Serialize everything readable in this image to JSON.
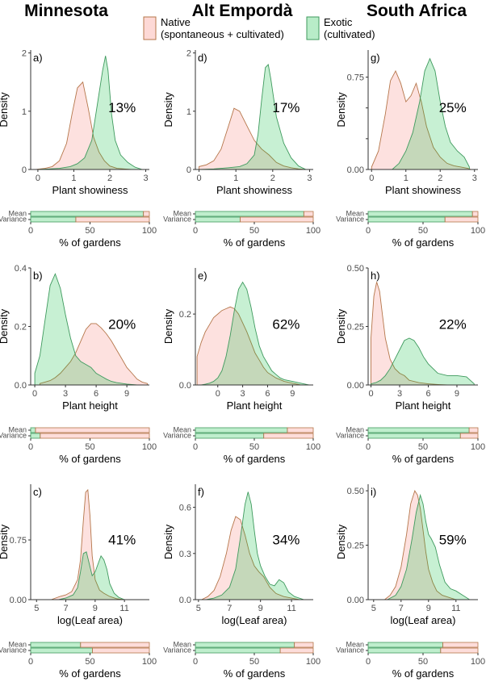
{
  "colors": {
    "native": "#f8766d",
    "exotic": "#00ba38",
    "native_line": "#b5764a",
    "exotic_line": "#3f9a5e",
    "axis": "#333333"
  },
  "legend": {
    "native": "Native\n(spontaneous + cultivated)",
    "exotic": "Exotic\n(cultivated)"
  },
  "columns": [
    "Minnesota",
    "Alt Empordà",
    "South Africa"
  ],
  "y_axis_label": "Density",
  "bar_axis_label": "% of gardens",
  "bar_rows": [
    "Mean",
    "Variance"
  ],
  "chart_data": [
    {
      "id": "a",
      "label": "a)",
      "type": "area",
      "xlabel": "Plant showiness",
      "ylabel": "Density",
      "xlim": [
        -0.2,
        3.1
      ],
      "ylim": [
        0,
        2.05
      ],
      "xticks": [
        0,
        1,
        2,
        3
      ],
      "yticks": [
        0,
        1,
        2
      ],
      "ytick_labels": [
        "0",
        "1",
        "2"
      ],
      "percent": "13%",
      "series": [
        {
          "key": "native",
          "x": [
            -0.05,
            0.2,
            0.4,
            0.6,
            0.8,
            0.95,
            1.1,
            1.25,
            1.4,
            1.55,
            1.7,
            1.85,
            2.0,
            2.2,
            2.4,
            2.6
          ],
          "y": [
            0,
            0.02,
            0.05,
            0.15,
            0.45,
            0.95,
            1.4,
            1.5,
            1.05,
            0.55,
            0.3,
            0.15,
            0.06,
            0.02,
            0.01,
            0
          ]
        },
        {
          "key": "exotic",
          "x": [
            0.0,
            0.3,
            0.6,
            0.9,
            1.1,
            1.3,
            1.5,
            1.65,
            1.8,
            1.88,
            1.95,
            2.05,
            2.15,
            2.3,
            2.5,
            2.7,
            2.9
          ],
          "y": [
            0,
            0.01,
            0.02,
            0.05,
            0.1,
            0.2,
            0.5,
            1.1,
            1.7,
            1.95,
            1.7,
            0.95,
            0.5,
            0.25,
            0.12,
            0.04,
            0
          ]
        }
      ],
      "bars": {
        "mean_native": 5,
        "variance_native": 62
      }
    },
    {
      "id": "d",
      "label": "d)",
      "type": "area",
      "xlabel": "Plant showiness",
      "ylabel": "Density",
      "xlim": [
        -0.1,
        3.1
      ],
      "ylim": [
        0,
        2.05
      ],
      "xticks": [
        0,
        1,
        2,
        3
      ],
      "yticks": [
        0,
        1,
        2
      ],
      "ytick_labels": [
        "0",
        "1",
        "2"
      ],
      "percent": "17%",
      "series": [
        {
          "key": "native",
          "x": [
            0.0,
            0.2,
            0.4,
            0.6,
            0.8,
            0.95,
            1.1,
            1.3,
            1.5,
            1.7,
            1.9,
            2.1,
            2.3,
            2.5,
            2.7,
            2.9
          ],
          "y": [
            0.05,
            0.08,
            0.15,
            0.35,
            0.75,
            1.05,
            1.0,
            0.75,
            0.5,
            0.35,
            0.25,
            0.12,
            0.06,
            0.03,
            0.01,
            0
          ]
        },
        {
          "key": "exotic",
          "x": [
            0.0,
            0.4,
            0.8,
            1.1,
            1.3,
            1.5,
            1.6,
            1.7,
            1.8,
            1.88,
            1.95,
            2.1,
            2.3,
            2.5,
            2.7,
            2.9
          ],
          "y": [
            0,
            0.01,
            0.03,
            0.05,
            0.1,
            0.25,
            0.6,
            1.2,
            1.75,
            1.8,
            1.55,
            0.9,
            0.45,
            0.2,
            0.06,
            0
          ]
        }
      ],
      "bars": {
        "mean_native": 8,
        "variance_native": 62
      }
    },
    {
      "id": "g",
      "label": "g)",
      "type": "area",
      "xlabel": "Plant showiness",
      "ylabel": "Density",
      "xlim": [
        -0.1,
        3.1
      ],
      "ylim": [
        0,
        0.97
      ],
      "xticks": [
        0,
        1,
        2,
        3
      ],
      "yticks": [
        0,
        0.25,
        0.5,
        0.75
      ],
      "ytick_labels": [
        "0.00",
        "",
        "",
        "0.75"
      ],
      "percent": "25%",
      "series": [
        {
          "key": "native",
          "x": [
            0.0,
            0.2,
            0.4,
            0.55,
            0.7,
            0.85,
            1.0,
            1.15,
            1.3,
            1.45,
            1.6,
            1.8,
            2.0,
            2.2,
            2.4,
            2.6,
            2.8,
            2.9
          ],
          "y": [
            0.02,
            0.15,
            0.45,
            0.72,
            0.8,
            0.7,
            0.55,
            0.6,
            0.7,
            0.55,
            0.35,
            0.18,
            0.1,
            0.05,
            0.03,
            0.02,
            0.01,
            0
          ]
        },
        {
          "key": "exotic",
          "x": [
            0.6,
            0.8,
            1.0,
            1.2,
            1.4,
            1.55,
            1.7,
            1.85,
            2.0,
            2.15,
            2.3,
            2.5,
            2.7,
            2.85
          ],
          "y": [
            0,
            0.05,
            0.15,
            0.3,
            0.55,
            0.8,
            0.9,
            0.8,
            0.55,
            0.35,
            0.22,
            0.15,
            0.1,
            0.02
          ]
        }
      ],
      "bars": {
        "mean_native": 5,
        "variance_native": 30
      }
    },
    {
      "id": "b",
      "label": "b)",
      "type": "area",
      "xlabel": "Plant height",
      "ylabel": "Density",
      "xlim": [
        -0.4,
        11.2
      ],
      "ylim": [
        0,
        0.4
      ],
      "xticks": [
        0,
        3,
        6,
        9
      ],
      "yticks": [
        0,
        0.2,
        0.4
      ],
      "ytick_labels": [
        "0.0",
        "0.2",
        "0.4"
      ],
      "percent": "20%",
      "series": [
        {
          "key": "native",
          "x": [
            0.5,
            1,
            1.5,
            2,
            2.5,
            3,
            3.5,
            4,
            4.5,
            5,
            5.5,
            6,
            6.5,
            7,
            7.5,
            8,
            8.5,
            9,
            9.5,
            10,
            10.5,
            11
          ],
          "y": [
            0.005,
            0.01,
            0.015,
            0.025,
            0.04,
            0.06,
            0.08,
            0.11,
            0.15,
            0.19,
            0.21,
            0.21,
            0.195,
            0.175,
            0.15,
            0.12,
            0.09,
            0.06,
            0.04,
            0.02,
            0.01,
            0.005
          ]
        },
        {
          "key": "exotic",
          "x": [
            0,
            0.5,
            1,
            1.5,
            2,
            2.5,
            3,
            3.5,
            4,
            4.5,
            5,
            5.5,
            6,
            6.5,
            7,
            7.5,
            8,
            9,
            10
          ],
          "y": [
            0.04,
            0.1,
            0.22,
            0.34,
            0.38,
            0.33,
            0.24,
            0.16,
            0.1,
            0.08,
            0.07,
            0.06,
            0.04,
            0.03,
            0.02,
            0.012,
            0.008,
            0.003,
            0
          ]
        }
      ],
      "bars": {
        "mean_native": 96,
        "variance_native": 92
      }
    },
    {
      "id": "e",
      "label": "e)",
      "type": "area",
      "xlabel": "Plant height",
      "ylabel": "Density",
      "xlim": [
        -2.7,
        11.5
      ],
      "ylim": [
        0,
        0.33
      ],
      "xticks": [
        0,
        3,
        6,
        9
      ],
      "yticks": [
        0,
        0.2
      ],
      "ytick_labels": [
        "0.0",
        "0.2"
      ],
      "percent": "62%",
      "series": [
        {
          "key": "native",
          "x": [
            -2.5,
            -2,
            -1.5,
            -1,
            -0.5,
            0,
            0.5,
            1,
            1.5,
            2,
            2.5,
            3,
            3.5,
            4,
            4.5,
            5,
            5.5,
            6,
            7,
            8,
            9,
            10
          ],
          "y": [
            0.08,
            0.12,
            0.15,
            0.17,
            0.19,
            0.2,
            0.21,
            0.215,
            0.22,
            0.215,
            0.2,
            0.175,
            0.15,
            0.12,
            0.09,
            0.07,
            0.05,
            0.035,
            0.02,
            0.01,
            0.005,
            0
          ]
        },
        {
          "key": "exotic",
          "x": [
            -2.0,
            -1.5,
            -1,
            -0.5,
            0,
            0.5,
            1,
            1.5,
            2,
            2.5,
            3,
            3.5,
            4,
            4.5,
            5,
            5.5,
            6,
            6.5,
            7,
            7.5,
            8,
            9,
            10,
            11
          ],
          "y": [
            0,
            0.002,
            0.005,
            0.01,
            0.02,
            0.04,
            0.08,
            0.14,
            0.21,
            0.27,
            0.29,
            0.27,
            0.22,
            0.16,
            0.11,
            0.08,
            0.06,
            0.04,
            0.03,
            0.02,
            0.015,
            0.01,
            0.005,
            0
          ]
        }
      ],
      "bars": {
        "mean_native": 22,
        "variance_native": 42
      }
    },
    {
      "id": "h",
      "label": "h)",
      "type": "area",
      "xlabel": "Plant height",
      "ylabel": "Density",
      "xlim": [
        -0.3,
        11.2
      ],
      "ylim": [
        0,
        0.5
      ],
      "xticks": [
        0,
        3,
        6,
        9
      ],
      "yticks": [
        0,
        0.25,
        0.5
      ],
      "ytick_labels": [
        "0.00",
        "0.25",
        "0.50"
      ],
      "percent": "22%",
      "series": [
        {
          "key": "native",
          "x": [
            0,
            0.3,
            0.6,
            0.9,
            1.2,
            1.5,
            2,
            2.5,
            3,
            3.5,
            4,
            5,
            6,
            7,
            8
          ],
          "y": [
            0.2,
            0.38,
            0.44,
            0.4,
            0.3,
            0.2,
            0.11,
            0.07,
            0.05,
            0.04,
            0.02,
            0.01,
            0.005,
            0.002,
            0
          ]
        },
        {
          "key": "exotic",
          "x": [
            0,
            0.5,
            1,
            1.5,
            2,
            2.5,
            3,
            3.5,
            4,
            4.5,
            5,
            5.5,
            6,
            7,
            8,
            9,
            10,
            10.8
          ],
          "y": [
            0.005,
            0.01,
            0.02,
            0.04,
            0.07,
            0.11,
            0.15,
            0.19,
            0.2,
            0.19,
            0.16,
            0.12,
            0.09,
            0.05,
            0.04,
            0.04,
            0.035,
            0.005
          ]
        }
      ],
      "bars": {
        "mean_native": 8,
        "variance_native": 16
      }
    },
    {
      "id": "c",
      "label": "c)",
      "type": "area",
      "xlabel": "log(Leaf area)",
      "ylabel": "Density",
      "xlim": [
        4.6,
        12.7
      ],
      "ylim": [
        0,
        1.45
      ],
      "xticks": [
        5,
        7,
        9,
        11
      ],
      "yticks": [
        0,
        0.75
      ],
      "ytick_labels": [
        "0.00",
        "0.75"
      ],
      "percent": "41%",
      "series": [
        {
          "key": "native",
          "x": [
            6.0,
            6.3,
            6.6,
            7.0,
            7.4,
            7.8,
            8.0,
            8.2,
            8.35,
            8.5,
            8.65,
            8.8,
            9.0,
            9.3,
            9.6,
            10.0,
            10.5,
            11.0
          ],
          "y": [
            0,
            0.02,
            0.04,
            0.06,
            0.1,
            0.25,
            0.5,
            1.0,
            1.35,
            1.38,
            1.05,
            0.55,
            0.25,
            0.12,
            0.08,
            0.04,
            0.01,
            0
          ]
        },
        {
          "key": "exotic",
          "x": [
            6.5,
            7.0,
            7.5,
            7.8,
            8.0,
            8.2,
            8.4,
            8.6,
            8.8,
            9.0,
            9.2,
            9.4,
            9.6,
            9.8,
            10.0,
            10.3,
            10.6,
            11.0
          ],
          "y": [
            0,
            0.02,
            0.06,
            0.15,
            0.35,
            0.58,
            0.6,
            0.45,
            0.3,
            0.35,
            0.45,
            0.55,
            0.5,
            0.38,
            0.2,
            0.08,
            0.03,
            0
          ]
        }
      ],
      "bars": {
        "mean_native": 58,
        "variance_native": 48
      }
    },
    {
      "id": "f",
      "label": "f)",
      "type": "area",
      "xlabel": "log(Leaf area)",
      "ylabel": "Density",
      "xlim": [
        4.8,
        12.4
      ],
      "ylim": [
        0,
        0.75
      ],
      "xticks": [
        5,
        7,
        9,
        11
      ],
      "yticks": [
        0,
        0.3,
        0.6
      ],
      "ytick_labels": [
        "0.0",
        "0.3",
        "0.6"
      ],
      "percent": "34%",
      "series": [
        {
          "key": "native",
          "x": [
            5.2,
            5.6,
            6.0,
            6.4,
            6.8,
            7.1,
            7.4,
            7.7,
            8.0,
            8.3,
            8.6,
            8.9,
            9.2,
            9.6,
            10.0,
            10.5,
            11.0,
            11.5
          ],
          "y": [
            0,
            0.02,
            0.06,
            0.15,
            0.3,
            0.45,
            0.54,
            0.52,
            0.42,
            0.3,
            0.22,
            0.18,
            0.15,
            0.08,
            0.04,
            0.02,
            0.01,
            0
          ]
        },
        {
          "key": "exotic",
          "x": [
            5.5,
            6.0,
            6.5,
            7.0,
            7.4,
            7.7,
            8.0,
            8.2,
            8.4,
            8.6,
            8.8,
            9.0,
            9.3,
            9.6,
            9.9,
            10.2,
            10.5,
            10.8,
            11.2,
            11.8
          ],
          "y": [
            0,
            0.01,
            0.03,
            0.08,
            0.2,
            0.4,
            0.62,
            0.7,
            0.62,
            0.45,
            0.3,
            0.22,
            0.15,
            0.1,
            0.09,
            0.13,
            0.11,
            0.05,
            0.02,
            0
          ]
        }
      ],
      "bars": {
        "mean_native": 16,
        "variance_native": 28
      }
    },
    {
      "id": "i",
      "label": "i)",
      "type": "area",
      "xlabel": "log(Leaf area)",
      "ylabel": "Density",
      "xlim": [
        4.6,
        12.6
      ],
      "ylim": [
        0,
        0.53
      ],
      "xticks": [
        5,
        7,
        9,
        11
      ],
      "yticks": [
        0,
        0.25,
        0.5
      ],
      "ytick_labels": [
        "0.00",
        "0.25",
        "0.50"
      ],
      "percent": "59%",
      "series": [
        {
          "key": "native",
          "x": [
            5.8,
            6.2,
            6.6,
            7.0,
            7.4,
            7.7,
            8.0,
            8.2,
            8.4,
            8.6,
            8.8,
            9.0,
            9.3,
            9.6,
            10.0,
            10.5,
            11.0
          ],
          "y": [
            0,
            0.02,
            0.06,
            0.15,
            0.3,
            0.44,
            0.5,
            0.48,
            0.42,
            0.32,
            0.22,
            0.14,
            0.08,
            0.04,
            0.02,
            0.01,
            0
          ]
        },
        {
          "key": "exotic",
          "x": [
            6.0,
            6.6,
            7.0,
            7.4,
            7.8,
            8.1,
            8.4,
            8.6,
            8.8,
            9.0,
            9.2,
            9.5,
            9.8,
            10.2,
            10.6,
            11.0,
            11.5,
            12.0
          ],
          "y": [
            0,
            0.02,
            0.06,
            0.14,
            0.28,
            0.4,
            0.48,
            0.44,
            0.36,
            0.3,
            0.28,
            0.24,
            0.16,
            0.08,
            0.05,
            0.04,
            0.02,
            0
          ]
        }
      ],
      "bars": {
        "mean_native": 32,
        "variance_native": 34
      }
    }
  ]
}
